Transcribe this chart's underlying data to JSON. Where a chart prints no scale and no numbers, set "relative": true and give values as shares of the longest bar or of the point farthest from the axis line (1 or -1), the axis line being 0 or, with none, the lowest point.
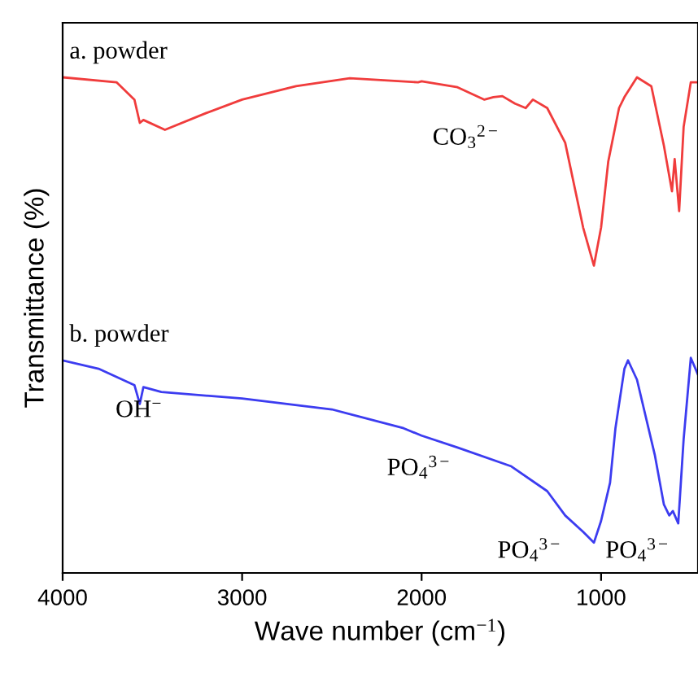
{
  "chart_data": {
    "type": "line",
    "relative": true,
    "xlabel": "Wave number (cm$^{−1}$)",
    "ylabel": "Transmittance (%)",
    "xlim": [
      4000,
      460
    ],
    "xticks": [
      4000,
      3000,
      2000,
      1000
    ],
    "grid": false,
    "legend": false,
    "tick_labels": "x",
    "series": [
      {
        "name": "a. powder",
        "color": "#f03c3c",
        "x": [
          4000,
          3700,
          3600,
          3570,
          3550,
          3430,
          3200,
          3000,
          2700,
          2400,
          2020,
          2000,
          1800,
          1650,
          1600,
          1550,
          1480,
          1420,
          1380,
          1300,
          1200,
          1100,
          1040,
          1000,
          960,
          900,
          870,
          800,
          720,
          650,
          605,
          590,
          565,
          540,
          500,
          470
        ],
        "values": [
          1.0,
          0.99,
          0.955,
          0.908,
          0.914,
          0.894,
          0.928,
          0.955,
          0.982,
          0.998,
          0.99,
          0.992,
          0.98,
          0.955,
          0.96,
          0.962,
          0.947,
          0.938,
          0.955,
          0.938,
          0.868,
          0.697,
          0.62,
          0.697,
          0.83,
          0.938,
          0.96,
          1.0,
          0.982,
          0.862,
          0.77,
          0.835,
          0.73,
          0.9,
          0.99,
          0.99
        ]
      },
      {
        "name": "b. powder",
        "color": "#3c3cf0",
        "x": [
          4000,
          3800,
          3600,
          3570,
          3550,
          3450,
          3000,
          2500,
          2100,
          2000,
          1800,
          1500,
          1300,
          1200,
          1100,
          1040,
          1000,
          950,
          920,
          870,
          850,
          800,
          700,
          650,
          620,
          600,
          570,
          540,
          500,
          460
        ],
        "values": [
          0.429,
          0.412,
          0.379,
          0.341,
          0.375,
          0.365,
          0.352,
          0.33,
          0.292,
          0.277,
          0.253,
          0.215,
          0.165,
          0.116,
          0.083,
          0.061,
          0.105,
          0.182,
          0.292,
          0.412,
          0.429,
          0.39,
          0.237,
          0.138,
          0.116,
          0.125,
          0.1,
          0.27,
          0.434,
          0.4
        ]
      }
    ],
    "annotations": [
      "CO$_{3}$$^{2−}$",
      "OH$^{−}$",
      "PO$_{4}$$^{3−}$",
      "PO$_{4}$$^{3−}$",
      "PO$_{4}$$^{3−}$"
    ]
  }
}
